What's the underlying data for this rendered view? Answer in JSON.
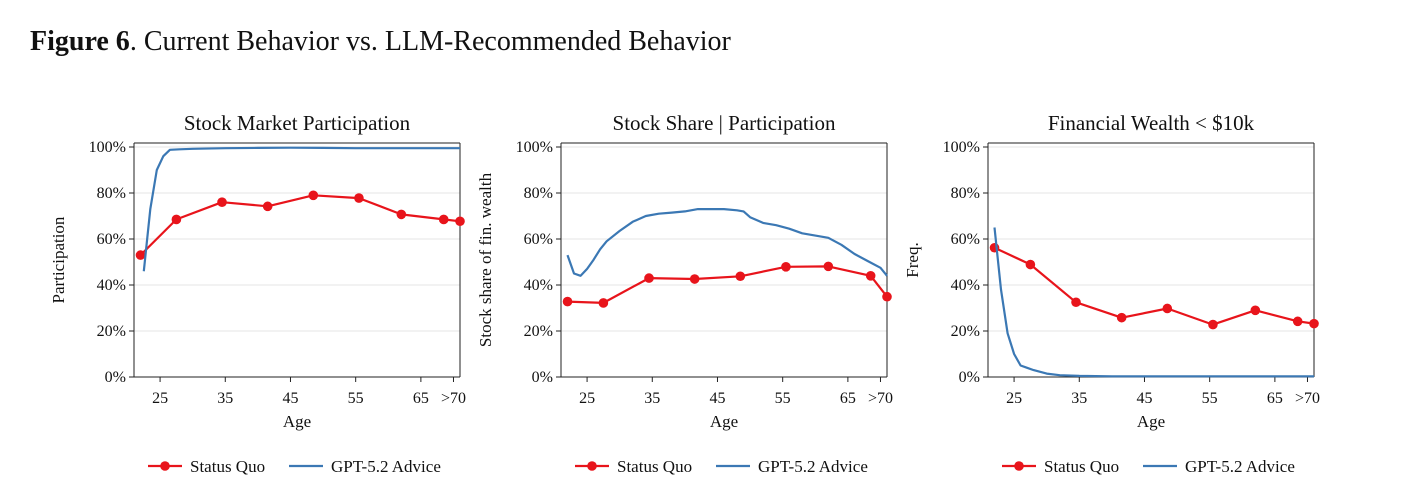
{
  "figure": {
    "number_label": "Figure 6",
    "title": "Current Behavior vs. LLM-Recommended Behavior"
  },
  "colors": {
    "status_quo": "#e8141b",
    "gpt_advice": "#3b78b4",
    "grid": "#e6e6e6",
    "axis": "#222222"
  },
  "chart_data": [
    {
      "type": "line",
      "title": "Stock Market Participation",
      "xlabel": "Age",
      "ylabel": "Participation",
      "xlim": [
        21,
        71
      ],
      "ylim": [
        0,
        100
      ],
      "x_ticks": [
        25,
        35,
        45,
        55,
        65,
        70
      ],
      "x_tick_labels": [
        "25",
        "35",
        "45",
        "55",
        "65",
        ">70"
      ],
      "y_ticks": [
        0,
        20,
        40,
        60,
        80,
        100
      ],
      "y_tick_labels": [
        "0%",
        "20%",
        "40%",
        "60%",
        "80%",
        "100%"
      ],
      "grid": true,
      "legend": "bottom",
      "series": [
        {
          "name": "Status Quo",
          "marker": "circle",
          "x": [
            22,
            27.5,
            34.5,
            41.5,
            48.5,
            55.5,
            62,
            68.5,
            71
          ],
          "y": [
            53,
            68.5,
            76,
            74.2,
            79,
            77.8,
            70.7,
            68.5,
            67.7
          ]
        },
        {
          "name": "GPT-5.2 Advice",
          "marker": "none",
          "x": [
            22.5,
            23.5,
            24.5,
            25.5,
            26.5,
            28,
            30,
            35,
            40,
            45,
            50,
            55,
            60,
            65,
            70,
            71
          ],
          "y": [
            46,
            73,
            90,
            96,
            98.8,
            99,
            99.2,
            99.5,
            99.6,
            99.7,
            99.6,
            99.5,
            99.5,
            99.5,
            99.5,
            99.5
          ]
        }
      ]
    },
    {
      "type": "line",
      "title": "Stock Share | Participation",
      "xlabel": "Age",
      "ylabel": "Stock share of fin. wealth",
      "xlim": [
        21,
        71
      ],
      "ylim": [
        0,
        100
      ],
      "x_ticks": [
        25,
        35,
        45,
        55,
        65,
        70
      ],
      "x_tick_labels": [
        "25",
        "35",
        "45",
        "55",
        "65",
        ">70"
      ],
      "y_ticks": [
        0,
        20,
        40,
        60,
        80,
        100
      ],
      "y_tick_labels": [
        "0%",
        "20%",
        "40%",
        "60%",
        "80%",
        "100%"
      ],
      "grid": true,
      "legend": "bottom",
      "series": [
        {
          "name": "Status Quo",
          "marker": "circle",
          "x": [
            22,
            27.5,
            34.5,
            41.5,
            48.5,
            55.5,
            62,
            68.5,
            71
          ],
          "y": [
            32.8,
            32.2,
            43,
            42.6,
            43.8,
            47.9,
            48.1,
            44,
            34.9
          ]
        },
        {
          "name": "GPT-5.2 Advice",
          "marker": "none",
          "x": [
            22,
            23,
            24,
            25,
            26,
            27,
            28,
            30,
            32,
            34,
            36,
            38,
            40,
            42,
            44,
            46,
            48,
            49,
            50,
            52,
            54,
            56,
            58,
            60,
            62,
            64,
            66,
            68,
            70,
            71
          ],
          "y": [
            53,
            45,
            44,
            47,
            51,
            55.5,
            59,
            63.5,
            67.5,
            70,
            71,
            71.5,
            72,
            73,
            73,
            73,
            72.5,
            72,
            69.5,
            67,
            66,
            64.5,
            62.5,
            61.5,
            60.5,
            57.5,
            53.5,
            50.5,
            47.5,
            44
          ]
        }
      ]
    },
    {
      "type": "line",
      "title": "Financial Wealth < $10k",
      "xlabel": "Age",
      "ylabel": "Freq.",
      "xlim": [
        21,
        71
      ],
      "ylim": [
        0,
        100
      ],
      "x_ticks": [
        25,
        35,
        45,
        55,
        65,
        70
      ],
      "x_tick_labels": [
        "25",
        "35",
        "45",
        "55",
        "65",
        ">70"
      ],
      "y_ticks": [
        0,
        20,
        40,
        60,
        80,
        100
      ],
      "y_tick_labels": [
        "0%",
        "20%",
        "40%",
        "60%",
        "80%",
        "100%"
      ],
      "grid": true,
      "legend": "bottom",
      "series": [
        {
          "name": "Status Quo",
          "marker": "circle",
          "x": [
            22,
            27.5,
            34.5,
            41.5,
            48.5,
            55.5,
            62,
            68.5,
            71
          ],
          "y": [
            56.2,
            48.9,
            32.5,
            25.8,
            29.8,
            22.8,
            29,
            24.2,
            23.2
          ]
        },
        {
          "name": "GPT-5.2 Advice",
          "marker": "none",
          "x": [
            22,
            23,
            24,
            25,
            26,
            27,
            28,
            30,
            32,
            35,
            40,
            45,
            50,
            55,
            60,
            65,
            70,
            71
          ],
          "y": [
            65,
            38,
            19,
            10,
            5,
            4,
            3,
            1.5,
            0.8,
            0.5,
            0.3,
            0.3,
            0.3,
            0.3,
            0.3,
            0.3,
            0.3,
            0.3
          ]
        }
      ]
    }
  ]
}
